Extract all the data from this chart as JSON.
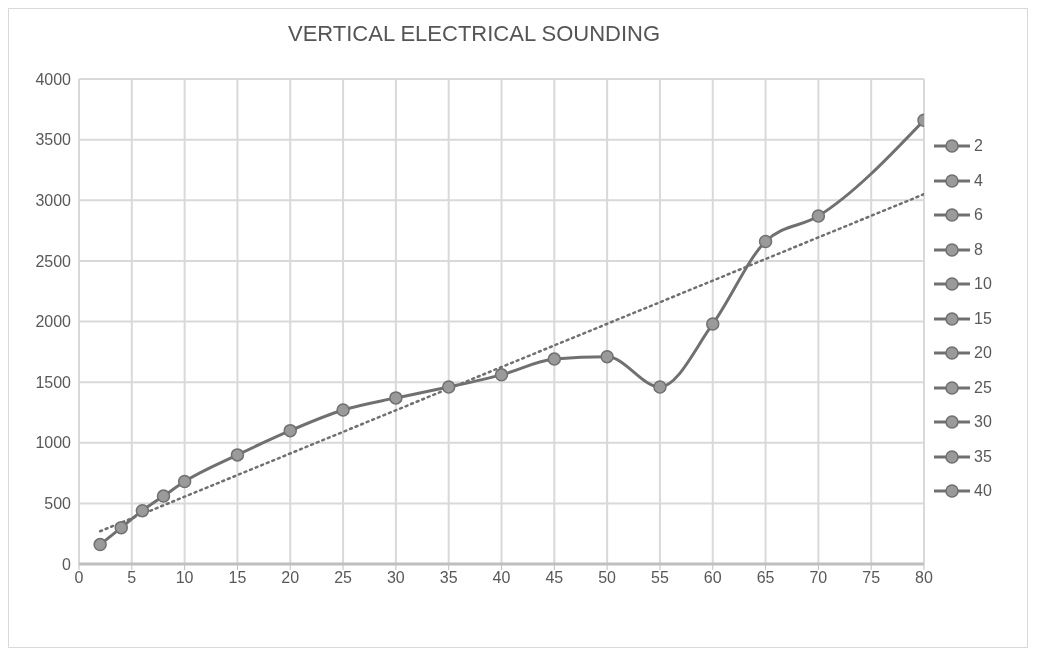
{
  "chart_data": {
    "type": "line",
    "title": "VERTICAL ELECTRICAL SOUNDING",
    "xlim": [
      0,
      80
    ],
    "xticks": [
      0,
      5,
      10,
      15,
      20,
      25,
      30,
      35,
      40,
      45,
      50,
      55,
      60,
      65,
      70,
      75,
      80
    ],
    "ylim": [
      0,
      4000
    ],
    "yticks": [
      0,
      500,
      1000,
      1500,
      2000,
      2500,
      3000,
      3500,
      4000
    ],
    "grid": true,
    "legend": "right",
    "marker": "circle",
    "series": [
      {
        "color": "#707070",
        "x": [
          2,
          4,
          6,
          8,
          10,
          15,
          20,
          25,
          30,
          35,
          40,
          45,
          50,
          55,
          60,
          65,
          70,
          80
        ],
        "values": [
          160,
          300,
          440,
          560,
          680,
          900,
          1100,
          1270,
          1370,
          1460,
          1560,
          1690,
          1710,
          1460,
          1980,
          2660,
          2870,
          3660
        ],
        "marker": "none"
      },
      {
        "type": "scatter",
        "color": "#707070",
        "x": [
          45,
          50,
          55,
          60,
          65,
          70,
          80
        ],
        "values": [
          1690,
          1710,
          1460,
          1980,
          2660,
          2870,
          3660
        ]
      },
      {
        "color": "#707070",
        "x": [
          2,
          80
        ],
        "values": [
          270,
          3050
        ],
        "marker": "none",
        "line_style": "dotted"
      },
      {
        "name": "2",
        "type": "scatter",
        "color": "#707070",
        "x": [
          2
        ],
        "values": [
          160
        ]
      },
      {
        "name": "4",
        "type": "scatter",
        "color": "#707070",
        "x": [
          4
        ],
        "values": [
          300
        ]
      },
      {
        "name": "6",
        "type": "scatter",
        "color": "#707070",
        "x": [
          6
        ],
        "values": [
          440
        ]
      },
      {
        "name": "8",
        "type": "scatter",
        "color": "#707070",
        "x": [
          8
        ],
        "values": [
          560
        ]
      },
      {
        "name": "10",
        "type": "scatter",
        "color": "#707070",
        "x": [
          10
        ],
        "values": [
          680
        ]
      },
      {
        "name": "15",
        "type": "scatter",
        "color": "#707070",
        "x": [
          15
        ],
        "values": [
          900
        ]
      },
      {
        "name": "20",
        "type": "scatter",
        "color": "#707070",
        "x": [
          20
        ],
        "values": [
          1100
        ]
      },
      {
        "name": "25",
        "type": "scatter",
        "color": "#707070",
        "x": [
          25
        ],
        "values": [
          1270
        ]
      },
      {
        "name": "30",
        "type": "scatter",
        "color": "#707070",
        "x": [
          30
        ],
        "values": [
          1370
        ]
      },
      {
        "name": "35",
        "type": "scatter",
        "color": "#707070",
        "x": [
          35
        ],
        "values": [
          1460
        ]
      },
      {
        "name": "40",
        "type": "scatter",
        "color": "#707070",
        "x": [
          40
        ],
        "values": [
          1560
        ]
      }
    ]
  }
}
